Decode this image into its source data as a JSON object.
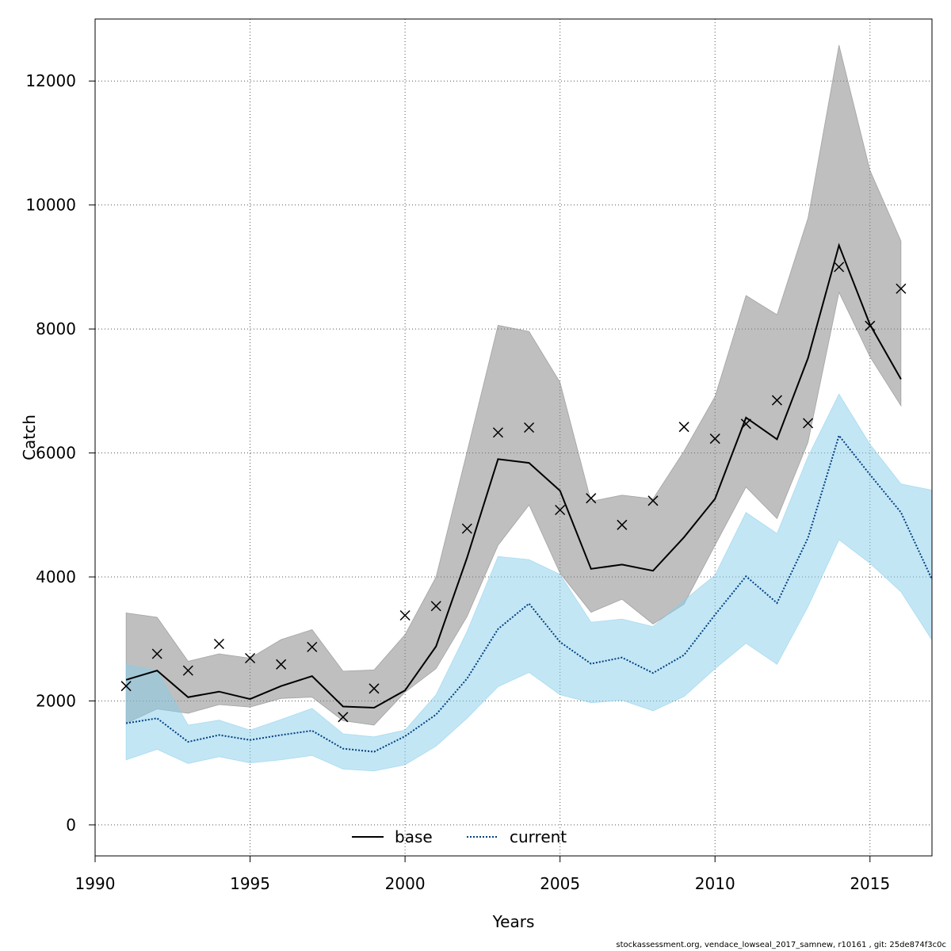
{
  "chart_data": {
    "type": "line",
    "title": "",
    "xlabel": "Years",
    "ylabel": "Catch",
    "xlim": [
      1990,
      2017
    ],
    "ylim": [
      -500,
      13000
    ],
    "x_ticks": [
      1990,
      1995,
      2000,
      2005,
      2010,
      2015
    ],
    "y_ticks": [
      0,
      2000,
      4000,
      6000,
      8000,
      10000,
      12000
    ],
    "grid": true,
    "legend_position": "bottom-center",
    "series": [
      {
        "name": "base",
        "line_style": "solid",
        "line_color": "#000000",
        "band_color": "#808080",
        "x": [
          1991,
          1992,
          1993,
          1994,
          1995,
          1996,
          1997,
          1998,
          1999,
          2000,
          2001,
          2002,
          2003,
          2004,
          2005,
          2006,
          2007,
          2008,
          2009,
          2010,
          2011,
          2012,
          2013,
          2014,
          2015,
          2016
        ],
        "values": [
          2340,
          2490,
          2060,
          2150,
          2030,
          2240,
          2400,
          1910,
          1890,
          2170,
          2880,
          4310,
          5900,
          5840,
          5390,
          4130,
          4200,
          4100,
          4640,
          5260,
          6570,
          6220,
          7530,
          9350,
          8070,
          7190
        ],
        "lower": [
          1640,
          1870,
          1800,
          1940,
          1900,
          2040,
          2060,
          1680,
          1610,
          2140,
          2520,
          3360,
          4510,
          5160,
          4060,
          3430,
          3640,
          3240,
          3560,
          4510,
          5450,
          4940,
          6170,
          8590,
          7550,
          6760
        ],
        "upper": [
          3420,
          3350,
          2640,
          2760,
          2690,
          2990,
          3150,
          2480,
          2500,
          3070,
          4000,
          6020,
          8060,
          7960,
          7140,
          5220,
          5320,
          5260,
          6030,
          6910,
          8540,
          8230,
          9790,
          12580,
          10560,
          9420
        ]
      },
      {
        "name": "current",
        "line_style": "dotted",
        "line_color": "#004080",
        "band_color": "#87ceeb",
        "x": [
          1991,
          1992,
          1993,
          1994,
          1995,
          1996,
          1997,
          1998,
          1999,
          2000,
          2001,
          2002,
          2003,
          2004,
          2005,
          2006,
          2007,
          2008,
          2009,
          2010,
          2011,
          2012,
          2013,
          2014,
          2015,
          2016,
          2017
        ],
        "values": [
          1640,
          1720,
          1340,
          1450,
          1370,
          1450,
          1520,
          1230,
          1180,
          1430,
          1780,
          2360,
          3160,
          3570,
          2950,
          2600,
          2700,
          2450,
          2740,
          3390,
          4010,
          3580,
          4630,
          6280,
          5650,
          5040,
          3960
        ],
        "lower": [
          1050,
          1220,
          990,
          1100,
          1000,
          1050,
          1120,
          900,
          870,
          970,
          1270,
          1720,
          2230,
          2460,
          2100,
          1970,
          2010,
          1840,
          2070,
          2520,
          2930,
          2590,
          3520,
          4600,
          4220,
          3760,
          2980
        ],
        "upper": [
          2590,
          2490,
          1610,
          1690,
          1530,
          1700,
          1880,
          1470,
          1420,
          1530,
          2100,
          3120,
          4330,
          4280,
          4040,
          3270,
          3320,
          3200,
          3620,
          4030,
          5040,
          4700,
          5940,
          6950,
          6140,
          5500,
          5400
        ]
      }
    ],
    "observations": {
      "marker": "x",
      "x": [
        1991,
        1992,
        1993,
        1994,
        1995,
        1996,
        1997,
        1998,
        1999,
        2000,
        2001,
        2002,
        2003,
        2004,
        2005,
        2006,
        2007,
        2008,
        2009,
        2010,
        2011,
        2012,
        2013,
        2014,
        2015,
        2016
      ],
      "values": [
        2240,
        2760,
        2490,
        2920,
        2690,
        2590,
        2870,
        1740,
        2200,
        3380,
        3530,
        4780,
        6330,
        6410,
        5080,
        5270,
        4840,
        5230,
        6420,
        6230,
        6470,
        6850,
        6480,
        9000,
        8050,
        8650
      ]
    }
  },
  "footer": "stockassessment.org, vendace_lowseal_2017_samnew, r10161 , git: 25de874f3c0c"
}
